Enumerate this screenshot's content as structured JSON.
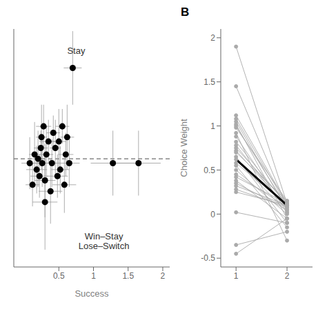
{
  "chart_data": [
    {
      "type": "scatter",
      "x_label": "Success",
      "xlim": [
        -0.15,
        2.1
      ],
      "xticks": [
        0.5,
        1,
        1.5,
        2
      ],
      "ylim": [
        0.3,
        1.4
      ],
      "tick_labels": "x",
      "grid": false,
      "series": [
        {
          "color": "#000000",
          "marker": "circle",
          "x": [
            0.08,
            0.12,
            0.15,
            0.18,
            0.2,
            0.22,
            0.24,
            0.25,
            0.26,
            0.28,
            0.3,
            0.32,
            0.35,
            0.38,
            0.4,
            0.42,
            0.45,
            0.48,
            0.5,
            0.52,
            0.55,
            0.58,
            0.6,
            0.62,
            0.65,
            0.7,
            0.3,
            1.28,
            1.65
          ],
          "values": [
            0.78,
            0.68,
            0.82,
            0.75,
            0.8,
            0.72,
            0.85,
            0.9,
            0.78,
            0.95,
            0.7,
            0.82,
            0.88,
            0.65,
            0.78,
            0.92,
            0.85,
            0.72,
            0.88,
            0.75,
            0.95,
            0.68,
            0.82,
            0.9,
            0.78,
            1.22,
            0.6,
            0.78,
            0.78
          ],
          "x_error": [
            0.12,
            0.1,
            0.08,
            0.15,
            0.11,
            0.13,
            0.1,
            0.08,
            0.17,
            0.11,
            0.15,
            0.1,
            0.13,
            0.17,
            0.11,
            0.1,
            0.08,
            0.15,
            0.11,
            0.13,
            0.1,
            0.17,
            0.11,
            0.1,
            0.15,
            0.13,
            0.18,
            0.32,
            0.32
          ],
          "y_error": [
            0.12,
            0.1,
            0.15,
            0.11,
            0.13,
            0.1,
            0.08,
            0.15,
            0.11,
            0.1,
            0.17,
            0.13,
            0.1,
            0.15,
            0.11,
            0.08,
            0.13,
            0.1,
            0.15,
            0.11,
            0.08,
            0.13,
            0.1,
            0.15,
            0.11,
            0.17,
            0.22,
            0.15,
            0.15
          ]
        }
      ],
      "hlines": [
        {
          "y": 0.8,
          "color": "#888888",
          "line_style": "dashed"
        }
      ],
      "annotations": [
        {
          "text": "Stay",
          "x": 0.75,
          "y": 1.3
        },
        {
          "text": "Win–Stay\nLose–Switch",
          "x": 1.15,
          "y": 0.42
        }
      ]
    },
    {
      "type": "line",
      "title": "B",
      "y_label": "Choice Weight",
      "x": [
        1,
        2
      ],
      "xlim": [
        0.7,
        2.5
      ],
      "xticks": [
        1,
        2
      ],
      "ylim": [
        -0.6,
        2.1
      ],
      "yticks": [
        -0.5,
        0.0,
        0.5,
        1.0,
        1.5,
        2.0
      ],
      "grid": false,
      "series": [
        {
          "values": [
            1.9,
            0.12
          ],
          "color": "#aaaaaa",
          "marker": "circle"
        },
        {
          "values": [
            1.45,
            0.08
          ],
          "color": "#aaaaaa",
          "marker": "circle"
        },
        {
          "values": [
            1.12,
            0.12
          ],
          "color": "#aaaaaa",
          "marker": "circle"
        },
        {
          "values": [
            1.08,
            0.1
          ],
          "color": "#aaaaaa",
          "marker": "circle"
        },
        {
          "values": [
            1.05,
            0.05
          ],
          "color": "#aaaaaa",
          "marker": "circle"
        },
        {
          "values": [
            1.02,
            -0.05
          ],
          "color": "#aaaaaa",
          "marker": "circle"
        },
        {
          "values": [
            1.0,
            0.08
          ],
          "color": "#aaaaaa",
          "marker": "circle"
        },
        {
          "values": [
            0.98,
            0.15
          ],
          "color": "#aaaaaa",
          "marker": "circle"
        },
        {
          "values": [
            0.92,
            -0.3
          ],
          "color": "#aaaaaa",
          "marker": "circle"
        },
        {
          "values": [
            0.88,
            0.02
          ],
          "color": "#aaaaaa",
          "marker": "circle"
        },
        {
          "values": [
            0.82,
            0.1
          ],
          "color": "#aaaaaa",
          "marker": "circle"
        },
        {
          "values": [
            0.78,
            0.05
          ],
          "color": "#aaaaaa",
          "marker": "circle"
        },
        {
          "values": [
            0.75,
            0.12
          ],
          "color": "#aaaaaa",
          "marker": "circle"
        },
        {
          "values": [
            0.72,
            0.08
          ],
          "color": "#aaaaaa",
          "marker": "circle"
        },
        {
          "values": [
            0.7,
            0.15
          ],
          "color": "#aaaaaa",
          "marker": "circle"
        },
        {
          "values": [
            0.65,
            -0.1
          ],
          "color": "#aaaaaa",
          "marker": "circle"
        },
        {
          "values": [
            0.62,
            0.02
          ],
          "color": "#aaaaaa",
          "marker": "circle"
        },
        {
          "values": [
            0.58,
            0.1
          ],
          "color": "#aaaaaa",
          "marker": "circle"
        },
        {
          "values": [
            0.55,
            -0.15
          ],
          "color": "#aaaaaa",
          "marker": "circle"
        },
        {
          "values": [
            0.5,
            0.0
          ],
          "color": "#aaaaaa",
          "marker": "circle"
        },
        {
          "values": [
            0.45,
            0.08
          ],
          "color": "#aaaaaa",
          "marker": "circle"
        },
        {
          "values": [
            0.42,
            0.12
          ],
          "color": "#aaaaaa",
          "marker": "circle"
        },
        {
          "values": [
            0.38,
            -0.05
          ],
          "color": "#aaaaaa",
          "marker": "circle"
        },
        {
          "values": [
            0.35,
            0.05
          ],
          "color": "#aaaaaa",
          "marker": "circle"
        },
        {
          "values": [
            0.32,
            0.1
          ],
          "color": "#aaaaaa",
          "marker": "circle"
        },
        {
          "values": [
            0.28,
            0.08
          ],
          "color": "#aaaaaa",
          "marker": "circle"
        },
        {
          "values": [
            0.25,
            0.1
          ],
          "color": "#aaaaaa",
          "marker": "circle"
        },
        {
          "values": [
            0.02,
            -0.1
          ],
          "color": "#aaaaaa",
          "marker": "circle"
        },
        {
          "values": [
            -0.35,
            -0.2
          ],
          "color": "#aaaaaa",
          "marker": "circle"
        },
        {
          "values": [
            -0.45,
            -0.05
          ],
          "color": "#aaaaaa",
          "marker": "circle"
        },
        {
          "values": [
            0.62,
            0.1
          ],
          "color": "#000000",
          "marker": "none"
        }
      ]
    }
  ]
}
